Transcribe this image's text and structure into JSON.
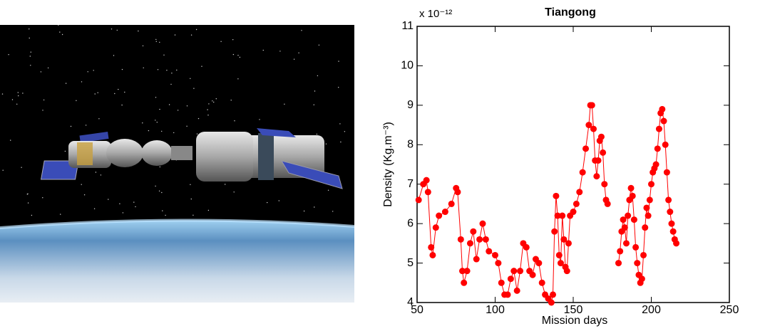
{
  "chart_data": {
    "type": "line",
    "title": "Tiangong",
    "axis_multiplier": "x 10⁻¹²",
    "xlabel": "Mission days",
    "ylabel": "Density (Kg.m⁻³)",
    "xlim": [
      50,
      250
    ],
    "xticks": [
      50,
      100,
      150,
      200,
      250
    ],
    "ylim": [
      4,
      11
    ],
    "yticks": [
      4,
      5,
      6,
      7,
      8,
      9,
      10,
      11
    ],
    "color": "#ff0000",
    "title_color": "#0000ff",
    "marker": "circle",
    "x": [
      51,
      54,
      56,
      57,
      59,
      60,
      62,
      64,
      68,
      72,
      75,
      76,
      78,
      79,
      80,
      82,
      84,
      86,
      88,
      90,
      92,
      94,
      96,
      100,
      102,
      104,
      106,
      108,
      110,
      112,
      114,
      116,
      118,
      120,
      122,
      124,
      126,
      128,
      130,
      132,
      134,
      136,
      137,
      138,
      139,
      140,
      141,
      142,
      143,
      144,
      145,
      146,
      147,
      148,
      150,
      152,
      154,
      156,
      158,
      160,
      161,
      162,
      163,
      164,
      165,
      166,
      167,
      168,
      169,
      170,
      171,
      172,
      175,
      179,
      180,
      181,
      182,
      183,
      184,
      185,
      186,
      187,
      188,
      189,
      190,
      191,
      192,
      193,
      194,
      195,
      196,
      197,
      198,
      199,
      200,
      201,
      202,
      203,
      204,
      205,
      206,
      207,
      208,
      209,
      210,
      211,
      212,
      213,
      214,
      215,
      216
    ],
    "values": [
      6.6,
      7.0,
      7.1,
      6.8,
      5.4,
      5.2,
      5.9,
      6.2,
      6.3,
      6.5,
      6.9,
      6.8,
      5.6,
      4.8,
      4.5,
      4.8,
      5.5,
      5.8,
      5.1,
      5.6,
      6.0,
      5.6,
      5.3,
      5.2,
      5.0,
      4.5,
      4.2,
      4.2,
      4.6,
      4.8,
      4.3,
      4.8,
      5.5,
      5.4,
      4.8,
      4.7,
      5.1,
      5.0,
      4.5,
      4.2,
      4.1,
      4.0,
      4.2,
      5.8,
      6.7,
      6.2,
      5.2,
      5.0,
      6.2,
      5.6,
      4.9,
      4.8,
      5.5,
      6.2,
      6.3,
      6.5,
      6.8,
      7.3,
      7.9,
      8.5,
      9.0,
      9.0,
      8.4,
      7.6,
      7.2,
      7.6,
      8.1,
      8.2,
      7.8,
      7.0,
      6.6,
      6.5,
      null,
      5.0,
      5.3,
      5.8,
      6.1,
      5.9,
      5.5,
      6.2,
      6.6,
      6.9,
      6.7,
      6.1,
      5.4,
      5.0,
      4.7,
      4.5,
      4.6,
      5.2,
      5.9,
      6.4,
      6.2,
      6.6,
      7.0,
      7.3,
      7.4,
      7.5,
      7.9,
      8.4,
      8.8,
      8.9,
      8.6,
      8.0,
      7.3,
      6.6,
      6.3,
      6.0,
      5.8,
      5.6,
      5.5
    ]
  }
}
